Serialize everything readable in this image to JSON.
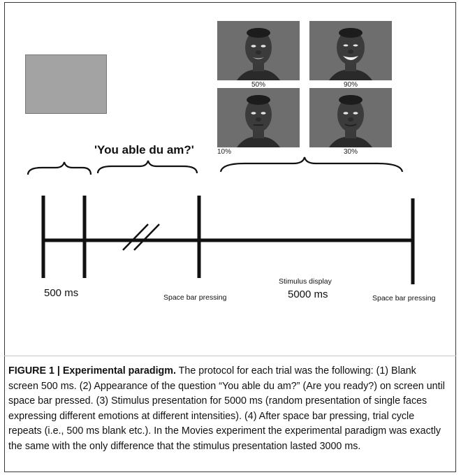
{
  "figure": {
    "question_text": "'You able du am?'",
    "faces": [
      {
        "label": "50%",
        "expression": "slight-smile"
      },
      {
        "label": "90%",
        "expression": "broad-smile"
      },
      {
        "label": "10%",
        "expression": "neutral"
      },
      {
        "label": "30%",
        "expression": "faint-smile"
      }
    ],
    "timeline_labels": {
      "blank_duration": "500 ms",
      "space_bar_1": "Space bar pressing",
      "stimulus_title": "Stimulus display",
      "stimulus_duration": "5000 ms",
      "space_bar_2": "Space bar pressing"
    },
    "colors": {
      "blank_screen": "#a3a3a3",
      "face_background": "#6e6e6e",
      "timeline": "#111111"
    }
  },
  "caption": {
    "title": "FIGURE 1 | Experimental paradigm.",
    "body": " The protocol for each trial was the following: (1) Blank screen 500 ms. (2) Appearance of the question “You able du am?” (Are you ready?) on screen until space bar pressed. (3) Stimulus presentation for 5000 ms (random presentation of single faces expressing different emotions at different intensities). (4) After space bar pressing, trial cycle repeats (i.e., 500 ms blank etc.). In the Movies experiment the experimental paradigm was exactly the same with the only difference that the stimulus presentation lasted 3000 ms."
  }
}
